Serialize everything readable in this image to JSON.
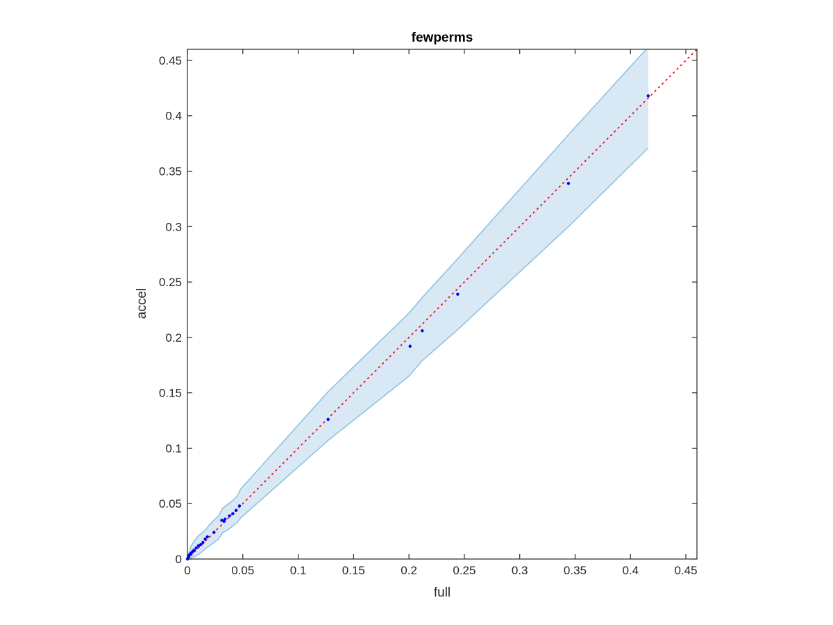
{
  "chart_data": {
    "type": "scatter",
    "title": "fewperms",
    "xlabel": "full",
    "ylabel": "accel",
    "xlim": [
      0,
      0.46
    ],
    "ylim": [
      0,
      0.46
    ],
    "xticks": [
      0,
      0.05,
      0.1,
      0.15,
      0.2,
      0.25,
      0.3,
      0.35,
      0.4,
      0.45
    ],
    "yticks": [
      0,
      0.05,
      0.1,
      0.15,
      0.2,
      0.25,
      0.3,
      0.35,
      0.4,
      0.45
    ],
    "xtick_labels": [
      "0",
      "0.05",
      "0.1",
      "0.15",
      "0.2",
      "0.25",
      "0.3",
      "0.35",
      "0.4",
      "0.45"
    ],
    "ytick_labels": [
      "0",
      "0.05",
      "0.1",
      "0.15",
      "0.2",
      "0.25",
      "0.3",
      "0.35",
      "0.4",
      "0.45"
    ],
    "grid": false,
    "box": true,
    "points": {
      "color": "#0000ff",
      "x": [
        0.0,
        0.0005,
        0.001,
        0.0015,
        0.002,
        0.003,
        0.004,
        0.005,
        0.006,
        0.008,
        0.01,
        0.012,
        0.014,
        0.016,
        0.018,
        0.024,
        0.031,
        0.033,
        0.034,
        0.038,
        0.041,
        0.044,
        0.047,
        0.127,
        0.201,
        0.212,
        0.244,
        0.344,
        0.416
      ],
      "y": [
        0.0,
        0.001,
        0.002,
        0.003,
        0.004,
        0.005,
        0.006,
        0.007,
        0.008,
        0.01,
        0.012,
        0.013,
        0.015,
        0.018,
        0.02,
        0.024,
        0.035,
        0.034,
        0.036,
        0.039,
        0.041,
        0.044,
        0.048,
        0.126,
        0.192,
        0.206,
        0.239,
        0.339,
        0.418
      ]
    },
    "reference_line": {
      "style": "dotted",
      "color": "#ff0000",
      "from": [
        0,
        0
      ],
      "to": [
        0.46,
        0.46
      ]
    },
    "confidence_band": {
      "fill_color": "#d8e8f4",
      "edge_color": "#8fc3e2",
      "x": [
        0.0,
        0.003,
        0.006,
        0.01,
        0.016,
        0.02,
        0.028,
        0.032,
        0.036,
        0.04,
        0.045,
        0.048,
        0.127,
        0.2,
        0.212,
        0.244,
        0.344,
        0.416
      ],
      "upper": [
        0.0,
        0.011,
        0.016,
        0.021,
        0.026,
        0.031,
        0.039,
        0.046,
        0.049,
        0.052,
        0.057,
        0.063,
        0.151,
        0.222,
        0.236,
        0.271,
        0.383,
        0.462
      ],
      "lower": [
        0.0,
        0.001,
        0.002,
        0.004,
        0.009,
        0.012,
        0.018,
        0.024,
        0.026,
        0.029,
        0.033,
        0.037,
        0.107,
        0.165,
        0.179,
        0.207,
        0.3,
        0.371
      ]
    }
  }
}
